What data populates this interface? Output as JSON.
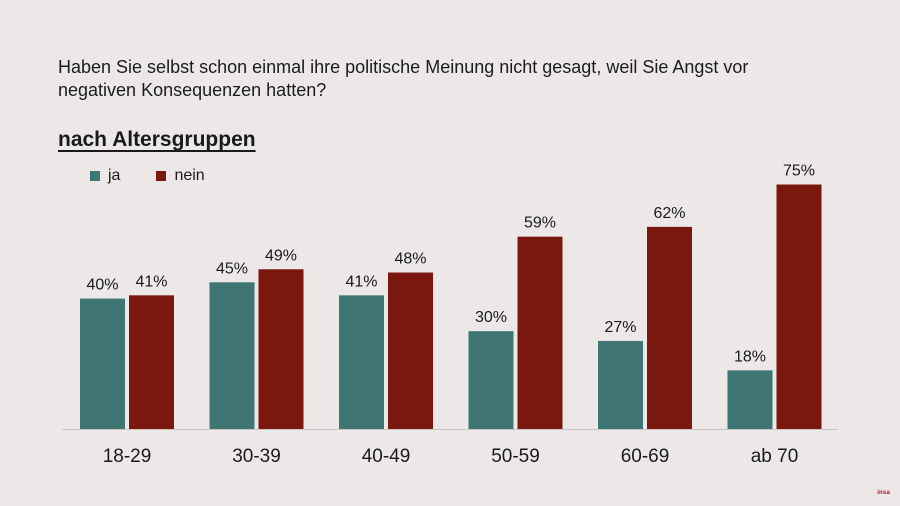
{
  "question": "Haben Sie selbst schon einmal ihre politische Meinung nicht gesagt, weil Sie Angst vor negativen Konsequenzen hatten?",
  "subtitle": "nach Altersgruppen",
  "colors": {
    "ja": "#3f7572",
    "nein": "#7a1810",
    "background": "#ece8e8"
  },
  "chart_data": {
    "type": "bar",
    "categories": [
      "18-29",
      "30-39",
      "40-49",
      "50-59",
      "60-69",
      "ab 70"
    ],
    "series": [
      {
        "name": "ja",
        "values": [
          40,
          45,
          41,
          30,
          27,
          18
        ],
        "labels": [
          "40%",
          "45%",
          "41%",
          "30%",
          "27%",
          "18%"
        ]
      },
      {
        "name": "nein",
        "values": [
          41,
          49,
          48,
          59,
          62,
          75
        ],
        "labels": [
          "41%",
          "49%",
          "48%",
          "59%",
          "62%",
          "75%"
        ]
      }
    ],
    "ylim": [
      0,
      100
    ],
    "legend": "top-left",
    "grid": false
  },
  "logo_text": "insa"
}
